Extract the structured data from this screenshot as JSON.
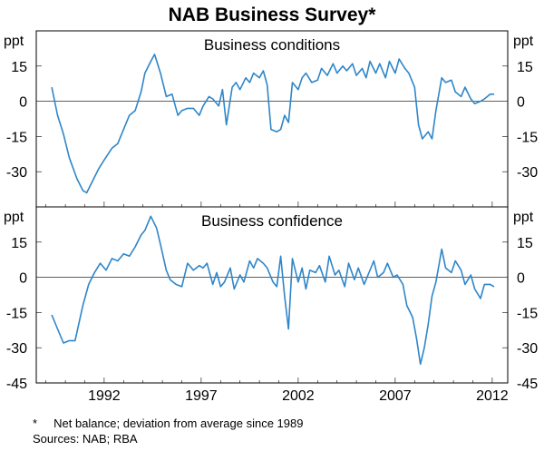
{
  "chart_data": {
    "type": "line",
    "title": "NAB Business Survey*",
    "unit_label": "ppt",
    "x_ticks": [
      "1992",
      "1997",
      "2002",
      "2007",
      "2012"
    ],
    "x_tick_years": [
      1992,
      1997,
      2002,
      2007,
      2012
    ],
    "xlim": [
      1988.5,
      2012.8
    ],
    "footnote": "*     Net balance; deviation from average since 1989",
    "sources": "Sources: NAB; RBA",
    "panels": [
      {
        "name": "Business conditions",
        "ylim": [
          -45,
          30
        ],
        "y_ticks_left": [
          "15",
          "0",
          "-15",
          "-30"
        ],
        "y_ticks_right": [
          "15",
          "0",
          "-15",
          "-30"
        ],
        "y_tick_values": [
          15,
          0,
          -15,
          -30
        ],
        "series": [
          {
            "name": "Business conditions",
            "color": "#2e86c9",
            "x": [
              1989.3,
              1989.6,
              1989.9,
              1990.2,
              1990.6,
              1990.9,
              1991.1,
              1991.4,
              1991.7,
              1992.0,
              1992.4,
              1992.7,
              1993.0,
              1993.3,
              1993.6,
              1993.9,
              1994.1,
              1994.4,
              1994.6,
              1994.9,
              1995.2,
              1995.5,
              1995.8,
              1996.0,
              1996.3,
              1996.6,
              1996.9,
              1997.1,
              1997.4,
              1997.6,
              1997.9,
              1998.1,
              1998.3,
              1998.6,
              1998.8,
              1999.0,
              1999.3,
              1999.5,
              1999.7,
              2000.0,
              2000.2,
              2000.4,
              2000.6,
              2000.9,
              2001.1,
              2001.3,
              2001.5,
              2001.7,
              2002.0,
              2002.2,
              2002.4,
              2002.7,
              2003.0,
              2003.2,
              2003.5,
              2003.8,
              2004.0,
              2004.3,
              2004.5,
              2004.8,
              2005.0,
              2005.3,
              2005.5,
              2005.7,
              2006.0,
              2006.2,
              2006.5,
              2006.7,
              2007.0,
              2007.2,
              2007.5,
              2007.7,
              2008.0,
              2008.2,
              2008.4,
              2008.7,
              2008.9,
              2009.1,
              2009.4,
              2009.6,
              2009.9,
              2010.1,
              2010.4,
              2010.6,
              2010.9,
              2011.1,
              2011.4,
              2011.6,
              2011.9,
              2012.1
            ],
            "values": [
              6,
              -6,
              -14,
              -24,
              -33,
              -38,
              -39,
              -34,
              -29,
              -25,
              -20,
              -18,
              -12,
              -6,
              -4,
              4,
              12,
              17,
              20,
              12,
              2,
              3,
              -6,
              -4,
              -3,
              -3,
              -6,
              -2,
              2,
              1,
              -2,
              5,
              -10,
              6,
              8,
              5,
              10,
              8,
              12,
              10,
              13,
              7,
              -12,
              -13,
              -12,
              -6,
              -9,
              8,
              5,
              10,
              12,
              8,
              9,
              14,
              11,
              16,
              12,
              15,
              13,
              16,
              11,
              14,
              10,
              17,
              12,
              16,
              10,
              17,
              12,
              18,
              14,
              12,
              6,
              -10,
              -16,
              -13,
              -16,
              -4,
              10,
              8,
              9,
              4,
              2,
              6,
              1,
              -1,
              0,
              1,
              3,
              3
            ]
          }
        ]
      },
      {
        "name": "Business confidence",
        "ylim": [
          -45,
          30
        ],
        "y_ticks_left": [
          "15",
          "0",
          "-15",
          "-30",
          "-45"
        ],
        "y_ticks_right": [
          "15",
          "0",
          "-15",
          "-30",
          "-45"
        ],
        "y_tick_values": [
          15,
          0,
          -15,
          -30,
          -45
        ],
        "series": [
          {
            "name": "Business confidence",
            "color": "#2e86c9",
            "x": [
              1989.3,
              1989.6,
              1989.9,
              1990.2,
              1990.5,
              1990.9,
              1991.2,
              1991.5,
              1991.8,
              1992.1,
              1992.4,
              1992.7,
              1993.0,
              1993.3,
              1993.6,
              1993.9,
              1994.1,
              1994.4,
              1994.7,
              1994.9,
              1995.2,
              1995.4,
              1995.7,
              1996.0,
              1996.3,
              1996.6,
              1996.9,
              1997.1,
              1997.3,
              1997.6,
              1997.8,
              1998.0,
              1998.2,
              1998.5,
              1998.7,
              1999.0,
              1999.2,
              1999.5,
              1999.7,
              1999.9,
              2000.2,
              2000.4,
              2000.7,
              2000.9,
              2001.1,
              2001.3,
              2001.5,
              2001.7,
              2002.0,
              2002.2,
              2002.4,
              2002.6,
              2002.9,
              2003.1,
              2003.4,
              2003.6,
              2003.9,
              2004.1,
              2004.4,
              2004.6,
              2004.9,
              2005.1,
              2005.4,
              2005.6,
              2005.9,
              2006.1,
              2006.4,
              2006.6,
              2006.9,
              2007.1,
              2007.4,
              2007.6,
              2007.9,
              2008.1,
              2008.3,
              2008.5,
              2008.7,
              2008.9,
              2009.1,
              2009.4,
              2009.6,
              2009.9,
              2010.1,
              2010.4,
              2010.6,
              2010.9,
              2011.1,
              2011.4,
              2011.6,
              2011.9,
              2012.1
            ],
            "values": [
              -16,
              -22,
              -28,
              -27,
              -27,
              -12,
              -3,
              2,
              6,
              3,
              8,
              7,
              10,
              9,
              13,
              18,
              20,
              26,
              21,
              14,
              3,
              -1,
              -3,
              -4,
              6,
              3,
              5,
              4,
              6,
              -3,
              2,
              -4,
              -2,
              4,
              -5,
              1,
              -2,
              7,
              4,
              8,
              6,
              4,
              -2,
              -4,
              9,
              -8,
              -22,
              8,
              -2,
              4,
              -5,
              3,
              2,
              5,
              -2,
              9,
              1,
              3,
              -4,
              6,
              -1,
              4,
              -3,
              1,
              7,
              0,
              2,
              6,
              0,
              1,
              -3,
              -12,
              -17,
              -26,
              -37,
              -30,
              -20,
              -8,
              -2,
              12,
              4,
              2,
              7,
              3,
              -3,
              1,
              -5,
              -9,
              -3,
              -3,
              -4
            ]
          }
        ]
      }
    ]
  }
}
